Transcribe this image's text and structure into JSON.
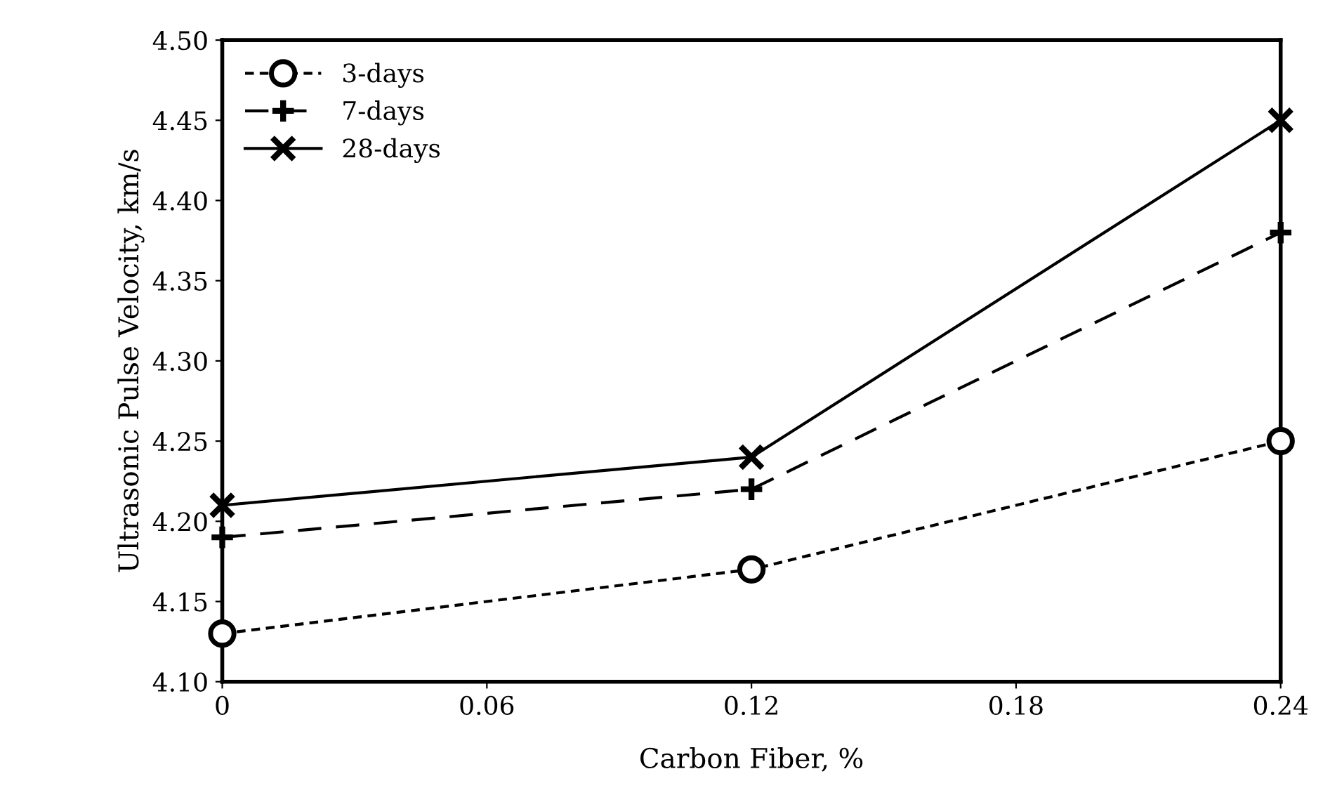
{
  "chart_data": {
    "type": "line",
    "xlabel": "Carbon Fiber, %",
    "ylabel": "Ultrasonic Pulse Velocity, km/s",
    "x": [
      0,
      0.12,
      0.24
    ],
    "series": [
      {
        "name": "3-days",
        "color": "#000000",
        "values": [
          4.13,
          4.17,
          4.25
        ],
        "marker": "circle",
        "line_style": "dotted"
      },
      {
        "name": "7-days",
        "color": "#000000",
        "values": [
          4.19,
          4.22,
          4.38
        ],
        "marker": "plus",
        "line_style": "dashed"
      },
      {
        "name": "28-days",
        "color": "#000000",
        "values": [
          4.21,
          4.24,
          4.45
        ],
        "marker": "cross",
        "line_style": "solid"
      }
    ],
    "xlim": [
      0,
      0.24
    ],
    "xticks": [
      0,
      0.06,
      0.12,
      0.18,
      0.24
    ],
    "ylim": [
      4.1,
      4.5
    ],
    "yticks": [
      {
        "value": 4.1,
        "label": "4.10"
      },
      {
        "value": 4.15,
        "label": "4.15"
      },
      {
        "value": 4.2,
        "label": "4.20"
      },
      {
        "value": 4.25,
        "label": "4.25"
      },
      {
        "value": 4.3,
        "label": "4.30"
      },
      {
        "value": 4.35,
        "label": "4.35"
      },
      {
        "value": 4.4,
        "label": "4.40"
      },
      {
        "value": 4.45,
        "label": "4.45"
      },
      {
        "value": 4.5,
        "label": "4.50"
      }
    ],
    "grid": false,
    "legend": "top left"
  }
}
